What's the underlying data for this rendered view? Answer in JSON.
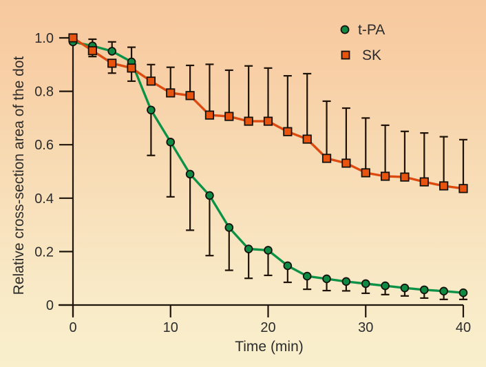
{
  "colors": {
    "background_stops": [
      "#f7c99e",
      "#f8cfa6",
      "#f7d9b1",
      "#f8e2bd",
      "#f9eac7",
      "#f9efcd"
    ],
    "axis": "#1e150a",
    "error_bar": "#1e1205",
    "text": "#2b2b2b",
    "marker_outline": "#14100a",
    "tpa_line": "#0c9246",
    "tpa_marker_fill": "#0e8a43",
    "sk_line": "#dd4a10",
    "sk_marker_fill": "#e8540e"
  },
  "chart_data": {
    "type": "line",
    "title": "",
    "xlabel": "Time (min)",
    "ylabel": "Relative cross-section area of the dot",
    "xlim": [
      0,
      40
    ],
    "ylim": [
      0,
      1.0
    ],
    "xticks": [
      0,
      10,
      20,
      30,
      40
    ],
    "xtick_labels": [
      "0",
      "10",
      "20",
      "30",
      "40"
    ],
    "yticks": [
      0,
      0.2,
      0.4,
      0.6,
      0.8,
      1.0
    ],
    "ytick_labels": [
      "0",
      "0.2",
      "0.4",
      "0.6",
      "0.8",
      "1.0"
    ],
    "grid": false,
    "legend_position": "top-right",
    "x": [
      0,
      2,
      4,
      6,
      8,
      10,
      12,
      14,
      16,
      18,
      20,
      22,
      24,
      26,
      28,
      30,
      32,
      34,
      36,
      38,
      40
    ],
    "series": [
      {
        "name": "t-PA",
        "marker": "circle",
        "values": [
          0.985,
          0.97,
          0.95,
          0.91,
          0.73,
          0.61,
          0.49,
          0.41,
          0.29,
          0.21,
          0.205,
          0.147,
          0.108,
          0.098,
          0.088,
          0.08,
          0.072,
          0.064,
          0.057,
          0.052,
          0.046
        ],
        "err_up": [
          0,
          0.025,
          0.035,
          0.055,
          0,
          0,
          0,
          0,
          0,
          0,
          0,
          0,
          0,
          0,
          0,
          0,
          0,
          0,
          0,
          0,
          0
        ],
        "err_down": [
          0,
          0,
          0,
          0,
          0.17,
          0.205,
          0.21,
          0.225,
          0.16,
          0.11,
          0.094,
          0.062,
          0.049,
          0.044,
          0.035,
          0.036,
          0.033,
          0.03,
          0.031,
          0.031,
          0.025
        ]
      },
      {
        "name": "SK",
        "marker": "square",
        "values": [
          1.0,
          0.952,
          0.905,
          0.887,
          0.838,
          0.794,
          0.784,
          0.711,
          0.706,
          0.688,
          0.688,
          0.649,
          0.621,
          0.549,
          0.531,
          0.495,
          0.482,
          0.479,
          0.461,
          0.446,
          0.436
        ],
        "err_up": [
          0,
          0,
          0,
          0,
          0.062,
          0.096,
          0.113,
          0.19,
          0.173,
          0.207,
          0.199,
          0.209,
          0.245,
          0.214,
          0.206,
          0.205,
          0.191,
          0.171,
          0.183,
          0.184,
          0.183
        ],
        "err_down": [
          0,
          0.022,
          0.037,
          0.049,
          0,
          0,
          0,
          0,
          0,
          0,
          0,
          0,
          0,
          0,
          0,
          0,
          0,
          0,
          0,
          0,
          0
        ]
      }
    ]
  }
}
